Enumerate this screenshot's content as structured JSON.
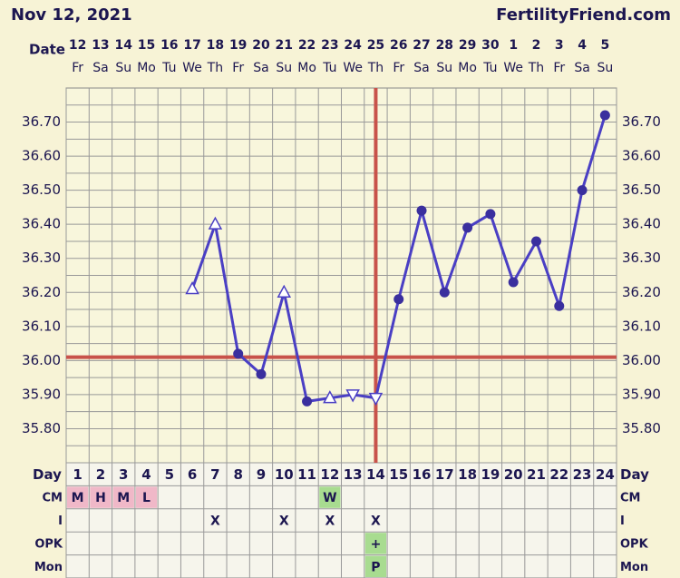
{
  "header": {
    "date": "Nov 12, 2021",
    "site": "FertilityFriend.com"
  },
  "chart_data": {
    "type": "line",
    "x_label": "Date",
    "dates": [
      "12",
      "13",
      "14",
      "15",
      "16",
      "17",
      "18",
      "19",
      "20",
      "21",
      "22",
      "23",
      "24",
      "25",
      "26",
      "27",
      "28",
      "29",
      "30",
      "1",
      "2",
      "3",
      "4",
      "5"
    ],
    "weekdays": [
      "Fr",
      "Sa",
      "Su",
      "Mo",
      "Tu",
      "We",
      "Th",
      "Fr",
      "Sa",
      "Su",
      "Mo",
      "Tu",
      "We",
      "Th",
      "Fr",
      "Sa",
      "Su",
      "Mo",
      "Tu",
      "We",
      "Th",
      "Fr",
      "Sa",
      "Su"
    ],
    "day_label": "Day",
    "days": [
      1,
      2,
      3,
      4,
      5,
      6,
      7,
      8,
      9,
      10,
      11,
      12,
      13,
      14,
      15,
      16,
      17,
      18,
      19,
      20,
      21,
      22,
      23,
      24
    ],
    "values": [
      null,
      null,
      null,
      null,
      null,
      36.21,
      36.4,
      36.02,
      35.96,
      36.2,
      35.88,
      35.89,
      35.9,
      35.89,
      36.18,
      36.44,
      36.2,
      36.39,
      36.43,
      36.23,
      36.35,
      36.16,
      36.5,
      36.72
    ],
    "markers": [
      null,
      null,
      null,
      null,
      null,
      "triangle-up",
      "triangle-up",
      "dot",
      "dot",
      "triangle-up",
      "dot",
      "triangle-up",
      "triangle-down",
      "triangle-down",
      "dot",
      "dot",
      "dot",
      "dot",
      "dot",
      "dot",
      "dot",
      "dot",
      "dot",
      "dot"
    ],
    "color": "#4a3fc4",
    "ylim": [
      35.7,
      36.8
    ],
    "yticks": [
      {
        "value": 35.8,
        "label": "35.80"
      },
      {
        "value": 35.9,
        "label": "35.90"
      },
      {
        "value": 36.0,
        "label": "36.00"
      },
      {
        "value": 36.1,
        "label": "36.10"
      },
      {
        "value": 36.2,
        "label": "36.20"
      },
      {
        "value": 36.3,
        "label": "36.30"
      },
      {
        "value": 36.4,
        "label": "36.40"
      },
      {
        "value": 36.5,
        "label": "36.50"
      },
      {
        "value": 36.6,
        "label": "36.60"
      },
      {
        "value": 36.7,
        "label": "36.70"
      }
    ],
    "yminor": [
      35.75,
      35.85,
      35.95,
      36.05,
      36.15,
      36.25,
      36.35,
      36.45,
      36.55,
      36.65,
      36.75
    ],
    "grid": true,
    "coverline": 36.01,
    "ovulation_day": 14,
    "marker_line_color": "#c8524a",
    "rows": [
      {
        "label": "CM",
        "cells": [
          "M",
          "H",
          "M",
          "L",
          null,
          null,
          null,
          null,
          null,
          null,
          null,
          "W",
          null,
          null,
          null,
          null,
          null,
          null,
          null,
          null,
          null,
          null,
          null,
          null
        ],
        "colors": [
          "#f0b8c8",
          "#f0b8c8",
          "#f0b8c8",
          "#f0b8c8",
          null,
          null,
          null,
          null,
          null,
          null,
          null,
          "#a8dc90",
          null,
          null,
          null,
          null,
          null,
          null,
          null,
          null,
          null,
          null,
          null,
          null
        ]
      },
      {
        "label": "I",
        "cells": [
          null,
          null,
          null,
          null,
          null,
          null,
          "X",
          null,
          null,
          "X",
          null,
          "X",
          null,
          "X",
          null,
          null,
          null,
          null,
          null,
          null,
          null,
          null,
          null,
          null
        ],
        "colors": [
          null,
          null,
          null,
          null,
          null,
          null,
          null,
          null,
          null,
          null,
          null,
          null,
          null,
          null,
          null,
          null,
          null,
          null,
          null,
          null,
          null,
          null,
          null,
          null
        ]
      },
      {
        "label": "OPK",
        "cells": [
          null,
          null,
          null,
          null,
          null,
          null,
          null,
          null,
          null,
          null,
          null,
          null,
          null,
          "+",
          null,
          null,
          null,
          null,
          null,
          null,
          null,
          null,
          null,
          null
        ],
        "colors": [
          null,
          null,
          null,
          null,
          null,
          null,
          null,
          null,
          null,
          null,
          null,
          null,
          null,
          "#a8dc90",
          null,
          null,
          null,
          null,
          null,
          null,
          null,
          null,
          null,
          null
        ]
      },
      {
        "label": "Mon",
        "cells": [
          null,
          null,
          null,
          null,
          null,
          null,
          null,
          null,
          null,
          null,
          null,
          null,
          null,
          "P",
          null,
          null,
          null,
          null,
          null,
          null,
          null,
          null,
          null,
          null
        ],
        "colors": [
          null,
          null,
          null,
          null,
          null,
          null,
          null,
          null,
          null,
          null,
          null,
          null,
          null,
          "#a8dc90",
          null,
          null,
          null,
          null,
          null,
          null,
          null,
          null,
          null,
          null
        ]
      }
    ]
  }
}
